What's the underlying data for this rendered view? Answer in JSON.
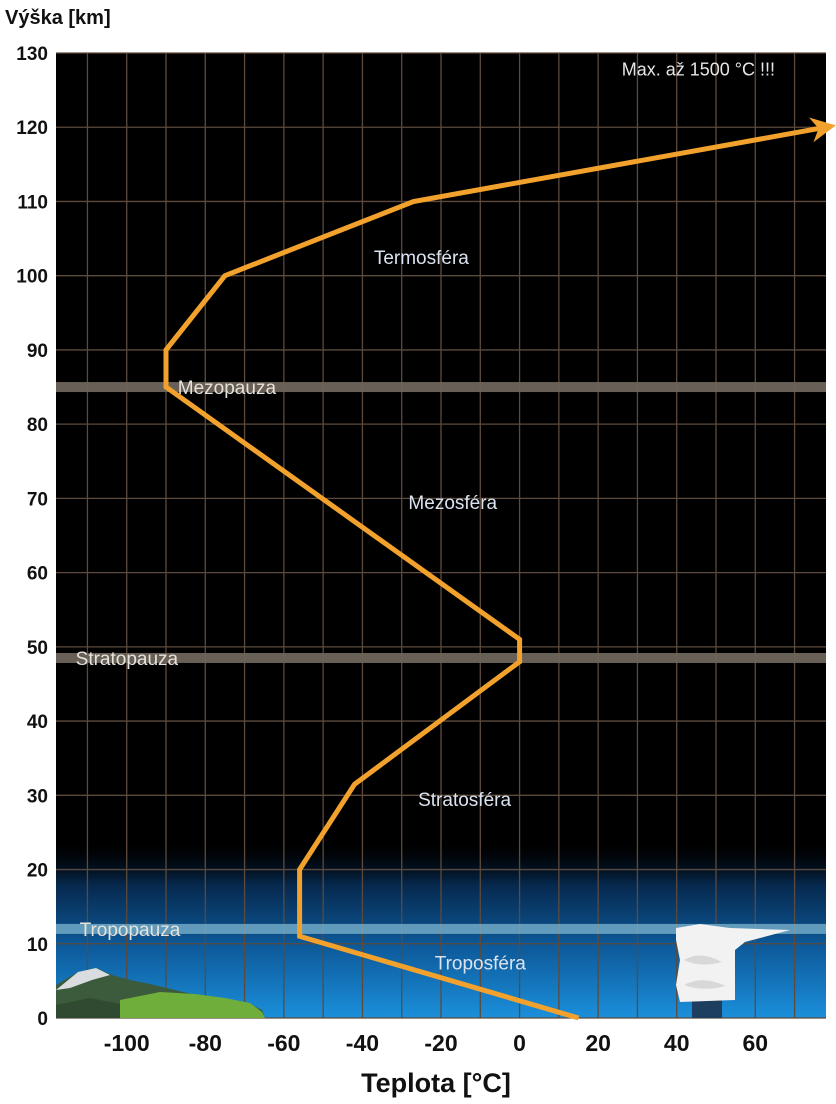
{
  "chart_data": {
    "type": "line",
    "xlabel": "Teplota [°C]",
    "ylabel": "Výška [km]",
    "xlim": [
      -118,
      78
    ],
    "ylim": [
      0,
      130
    ],
    "x_ticks": [
      -100,
      -80,
      -60,
      -40,
      -20,
      0,
      20,
      40,
      60
    ],
    "y_ticks": [
      0,
      10,
      20,
      30,
      40,
      50,
      60,
      70,
      80,
      90,
      100,
      110,
      120,
      130
    ],
    "grid": true,
    "series": [
      {
        "color": "#f2a22c",
        "points": [
          {
            "x": 15,
            "y": 0
          },
          {
            "x": -56,
            "y": 11
          },
          {
            "x": -56,
            "y": 20
          },
          {
            "x": -42,
            "y": 31.5
          },
          {
            "x": 0,
            "y": 48
          },
          {
            "x": 0,
            "y": 51
          },
          {
            "x": -90,
            "y": 85
          },
          {
            "x": -90,
            "y": 90
          },
          {
            "x": -75,
            "y": 100
          },
          {
            "x": -27,
            "y": 110
          },
          {
            "x": 78,
            "y": 120
          }
        ]
      }
    ],
    "boundaries": [
      {
        "label": "Tropopauza",
        "y": 12,
        "label_x": -112
      },
      {
        "label": "Stratopauza",
        "y": 48.5,
        "label_x": -113
      },
      {
        "label": "Mezopauza",
        "y": 85,
        "label_x": -87
      }
    ],
    "layers": [
      {
        "label": "Troposféra",
        "x": -10,
        "y": 7.5
      },
      {
        "label": "Stratosféra",
        "x": -14,
        "y": 29.5
      },
      {
        "label": "Mezosféra",
        "x": -17,
        "y": 69.5
      },
      {
        "label": "Termosféra",
        "x": -25,
        "y": 102.5
      }
    ],
    "annotations": [
      {
        "text": "Max. až 1500 °C !!!",
        "x": 26,
        "y": 124
      }
    ],
    "colors": {
      "background": "#000000",
      "grid": "#5c4a3c",
      "pause_band": "#6e655b",
      "tropopause_band": "#7fb6cf",
      "sky_top": "#0a3a6b",
      "sky_bottom": "#1a8ad6",
      "curve": "#f2a22c"
    }
  }
}
